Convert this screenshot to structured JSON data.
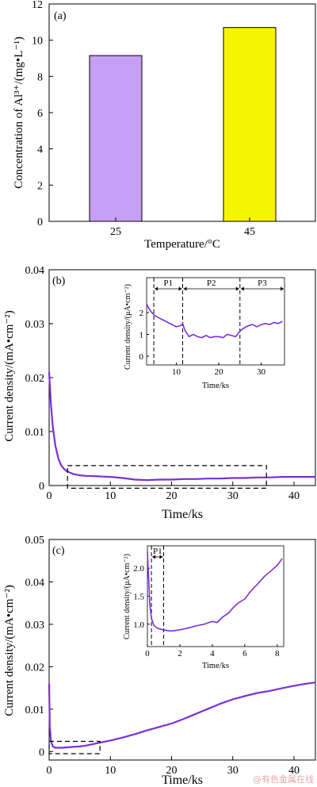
{
  "watermark": "@有色金属在线",
  "chart_data": [
    {
      "type": "bar",
      "panel_label": "(a)",
      "categories": [
        "25",
        "45"
      ],
      "values": [
        9.15,
        10.7
      ],
      "colors": [
        "#c7a0f5",
        "#f5f500"
      ],
      "xlabel": "Temperature/°C",
      "ylabel": "Concentration of Al³⁺/(mg•L⁻¹)",
      "ylim": [
        0,
        12
      ],
      "yticks": [
        0,
        2,
        4,
        6,
        8,
        10,
        12
      ]
    },
    {
      "type": "line",
      "panel_label": "(b)",
      "xlabel": "Time/ks",
      "ylabel": "Current density/(mA•cm⁻²)",
      "xlim": [
        0,
        43.5
      ],
      "ylim": [
        0,
        0.04
      ],
      "xticks": [
        0,
        10,
        20,
        30,
        40
      ],
      "yticks": [
        0,
        0.01,
        0.02,
        0.03,
        0.04
      ],
      "line_color": "#7b2fd8",
      "series": [
        {
          "x": [
            0,
            0.3,
            0.6,
            1,
            1.5,
            2,
            2.5,
            3,
            4,
            5,
            6,
            8,
            10,
            12,
            14,
            16,
            18,
            20,
            22,
            24,
            26,
            28,
            30,
            32,
            34,
            36,
            38,
            40,
            42,
            43.5
          ],
          "values": [
            0.021,
            0.015,
            0.011,
            0.0075,
            0.005,
            0.0037,
            0.003,
            0.0026,
            0.0021,
            0.0019,
            0.0018,
            0.0017,
            0.0016,
            0.0014,
            0.0011,
            0.001,
            0.0011,
            0.0011,
            0.0012,
            0.0012,
            0.0013,
            0.0013,
            0.0014,
            0.0014,
            0.0015,
            0.0015,
            0.0016,
            0.0016,
            0.0016,
            0.0016
          ]
        }
      ],
      "highlight_box": {
        "x": [
          3,
          35.5
        ],
        "y": [
          -0.0005,
          0.0037
        ]
      },
      "inset": {
        "xlabel": "Time/ks",
        "ylabel": "Current density/(μA•cm⁻²)",
        "xlim": [
          3,
          35.5
        ],
        "ylim": [
          -0.4,
          3.6
        ],
        "xticks": [
          10,
          20,
          30
        ],
        "yticks": [
          0,
          1,
          2
        ],
        "dividers": [
          4.7,
          11.5,
          25
        ],
        "phases": [
          "P1",
          "P2",
          "P3"
        ],
        "series": [
          {
            "x": [
              3,
              3.5,
              4,
              4.5,
              5,
              6,
              7,
              8,
              9,
              10,
              11,
              11.5,
              12,
              13,
              14,
              15,
              16,
              17,
              18,
              19,
              20,
              21,
              22,
              23,
              24,
              25,
              26,
              27,
              28,
              29,
              30,
              31,
              32,
              33,
              34,
              35
            ],
            "values": [
              2.4,
              2.2,
              2.05,
              1.95,
              1.85,
              1.75,
              1.65,
              1.55,
              1.45,
              1.35,
              1.4,
              1.5,
              1.2,
              0.9,
              1.0,
              0.9,
              0.85,
              0.95,
              0.85,
              0.9,
              0.9,
              0.85,
              1.0,
              0.95,
              0.9,
              1.15,
              1.3,
              1.4,
              1.45,
              1.35,
              1.45,
              1.5,
              1.45,
              1.55,
              1.5,
              1.6
            ]
          }
        ]
      }
    },
    {
      "type": "line",
      "panel_label": "(c)",
      "xlabel": "Time/ks",
      "ylabel": "Current density/(mA•cm⁻²)",
      "xlim": [
        0,
        43.5
      ],
      "ylim": [
        -0.002,
        0.05
      ],
      "xticks": [
        0,
        10,
        20,
        30,
        40
      ],
      "yticks": [
        0,
        0.01,
        0.02,
        0.03,
        0.04,
        0.05
      ],
      "line_color": "#7b2fd8",
      "series": [
        {
          "x": [
            0,
            0.1,
            0.3,
            0.6,
            1,
            2,
            3,
            4,
            5,
            6,
            7,
            8,
            10,
            12,
            14,
            16,
            18,
            20,
            22,
            24,
            26,
            28,
            30,
            32,
            34,
            36,
            38,
            40,
            42,
            43.5
          ],
          "values": [
            0.016,
            0.006,
            0.0025,
            0.0012,
            0.0009,
            0.0009,
            0.001,
            0.0011,
            0.0012,
            0.0014,
            0.0017,
            0.002,
            0.0026,
            0.0033,
            0.0041,
            0.005,
            0.0058,
            0.0066,
            0.0077,
            0.0089,
            0.0101,
            0.0113,
            0.0123,
            0.0131,
            0.0138,
            0.0143,
            0.0149,
            0.0155,
            0.016,
            0.0163
          ]
        }
      ],
      "highlight_box": {
        "x": [
          0,
          8.3
        ],
        "y": [
          -0.0005,
          0.0024
        ]
      },
      "inset": {
        "xlabel": "Time/ks",
        "ylabel": "Current density/(μA•cm⁻²)",
        "xlim": [
          0,
          8.4
        ],
        "ylim": [
          0.6,
          2.4
        ],
        "xticks": [
          0,
          2,
          4,
          6,
          8
        ],
        "yticks": [
          1.0,
          1.5,
          2.0
        ],
        "dividers": [
          0.25,
          1.0
        ],
        "phases": [
          "P1"
        ],
        "series": [
          {
            "x": [
              0,
              0.08,
              0.15,
              0.25,
              0.4,
              0.6,
              0.8,
              1.0,
              1.3,
              1.6,
              2.0,
              2.5,
              3.0,
              3.5,
              4.0,
              4.3,
              4.6,
              5.0,
              5.3,
              5.6,
              6.0,
              6.4,
              6.8,
              7.2,
              7.6,
              8.0,
              8.3
            ],
            "values": [
              2.3,
              1.8,
              1.35,
              1.1,
              0.98,
              0.93,
              0.91,
              0.9,
              0.88,
              0.88,
              0.9,
              0.93,
              0.97,
              1.0,
              1.05,
              1.03,
              1.12,
              1.2,
              1.3,
              1.38,
              1.45,
              1.6,
              1.72,
              1.85,
              1.95,
              2.05,
              2.17
            ]
          }
        ]
      }
    }
  ]
}
